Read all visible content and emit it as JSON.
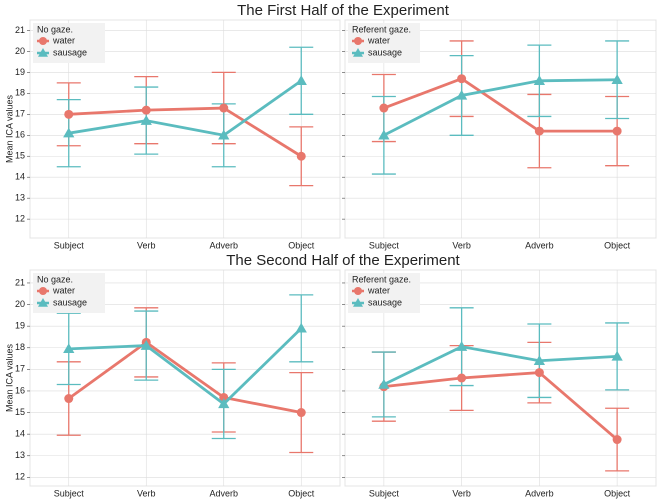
{
  "chart_data": [
    {
      "type": "line",
      "title": "The First Half of the Experiment",
      "y_label": "Mean ICA values",
      "legend_title": "No gaze.",
      "categories": [
        "Subject",
        "Verb",
        "Adverb",
        "Object"
      ],
      "series": [
        {
          "name": "water",
          "color": "#e8776c",
          "marker": "circle",
          "values": [
            17.0,
            17.2,
            17.3,
            15.0
          ],
          "errors": [
            1.5,
            1.6,
            1.7,
            1.4
          ]
        },
        {
          "name": "sausage",
          "color": "#5bbcbf",
          "marker": "triangle",
          "values": [
            16.1,
            16.7,
            16.0,
            18.6
          ],
          "errors": [
            1.6,
            1.6,
            1.5,
            1.6
          ]
        }
      ],
      "ylim": [
        11.1,
        21.5
      ],
      "yticks": [
        12,
        13,
        14,
        15,
        16,
        17,
        18,
        19,
        20,
        21
      ],
      "grid": true,
      "show_ytick_labels": true
    },
    {
      "type": "line",
      "legend_title": "Referent gaze.",
      "categories": [
        "Subject",
        "Verb",
        "Adverb",
        "Object"
      ],
      "series": [
        {
          "name": "water",
          "color": "#e8776c",
          "marker": "circle",
          "values": [
            17.3,
            18.7,
            16.2,
            16.2
          ],
          "errors": [
            1.6,
            1.8,
            1.75,
            1.65
          ]
        },
        {
          "name": "sausage",
          "color": "#5bbcbf",
          "marker": "triangle",
          "values": [
            16.0,
            17.9,
            18.6,
            18.65
          ],
          "errors": [
            1.85,
            1.9,
            1.7,
            1.85
          ]
        }
      ],
      "ylim": [
        11.1,
        21.5
      ],
      "yticks": [
        12,
        13,
        14,
        15,
        16,
        17,
        18,
        19,
        20,
        21
      ],
      "grid": true,
      "show_ytick_labels": false
    },
    {
      "type": "line",
      "title": "The Second Half of the Experiment",
      "y_label": "Mean ICA values",
      "legend_title": "No gaze.",
      "categories": [
        "Subject",
        "Verb",
        "Adverb",
        "Object"
      ],
      "series": [
        {
          "name": "water",
          "color": "#e8776c",
          "marker": "circle",
          "values": [
            15.65,
            18.25,
            15.7,
            15.0
          ],
          "errors": [
            1.7,
            1.6,
            1.6,
            1.85
          ]
        },
        {
          "name": "sausage",
          "color": "#5bbcbf",
          "marker": "triangle",
          "values": [
            17.95,
            18.1,
            15.4,
            18.9
          ],
          "errors": [
            1.65,
            1.6,
            1.6,
            1.55
          ]
        }
      ],
      "ylim": [
        11.6,
        21.6
      ],
      "yticks": [
        12,
        13,
        14,
        15,
        16,
        17,
        18,
        19,
        20,
        21
      ],
      "grid": true,
      "show_ytick_labels": true
    },
    {
      "type": "line",
      "legend_title": "Referent gaze.",
      "categories": [
        "Subject",
        "Verb",
        "Adverb",
        "Object"
      ],
      "series": [
        {
          "name": "water",
          "color": "#e8776c",
          "marker": "circle",
          "values": [
            16.2,
            16.6,
            16.85,
            13.75
          ],
          "errors": [
            1.6,
            1.5,
            1.4,
            1.45
          ]
        },
        {
          "name": "sausage",
          "color": "#5bbcbf",
          "marker": "triangle",
          "values": [
            16.3,
            18.05,
            17.4,
            17.6
          ],
          "errors": [
            1.5,
            1.8,
            1.7,
            1.55
          ]
        }
      ],
      "ylim": [
        11.6,
        21.6
      ],
      "yticks": [
        12,
        13,
        14,
        15,
        16,
        17,
        18,
        19,
        20,
        21
      ],
      "grid": true,
      "show_ytick_labels": false
    }
  ]
}
